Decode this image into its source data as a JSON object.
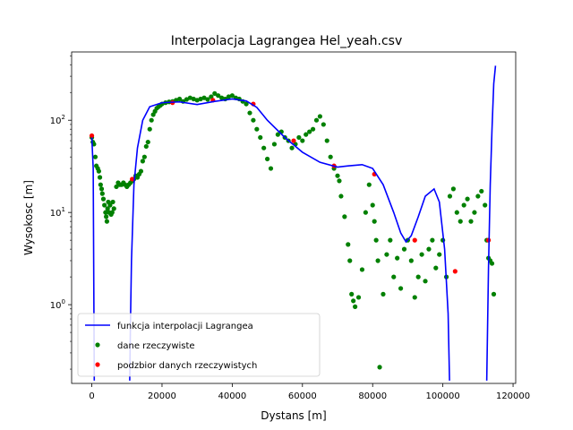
{
  "chart_data": {
    "type": "line",
    "title": "Interpolacja Lagrangea Hel_yeah.csv",
    "xlabel": "Dystans [m]",
    "ylabel": "Wysokosc [m]",
    "yscale": "log",
    "xlim": [
      -5750,
      120750
    ],
    "ylim": [
      0.14,
      550
    ],
    "x_ticks": [
      0,
      20000,
      40000,
      60000,
      80000,
      100000,
      120000
    ],
    "y_ticks": [
      {
        "value": 1,
        "label": "10^0"
      },
      {
        "value": 10,
        "label": "10^1"
      },
      {
        "value": 100,
        "label": "10^2"
      }
    ],
    "grid": false,
    "legend_position": "lower-left",
    "legend": [
      {
        "label": "funkcja interpolacji Lagrangea",
        "kind": "line",
        "color": "#0000ff"
      },
      {
        "label": "dane rzeczywiste",
        "kind": "marker",
        "color": "#008000"
      },
      {
        "label": "podzbior danych rzeczywistych",
        "kind": "marker",
        "color": "#ff0000"
      }
    ],
    "series": [
      {
        "name": "funkcja interpolacji Lagrangea",
        "style": "line",
        "color": "#0000ff",
        "segments": [
          [
            [
              0,
              65
            ],
            [
              400,
              30
            ],
            [
              700,
              0.15
            ]
          ],
          [
            [
              10800,
              0.15
            ],
            [
              11000,
              0.6
            ],
            [
              11300,
              3
            ],
            [
              12000,
              20
            ],
            [
              13000,
              50
            ],
            [
              14500,
              100
            ],
            [
              16500,
              140
            ],
            [
              20000,
              155
            ],
            [
              25000,
              158
            ],
            [
              30000,
              148
            ],
            [
              35000,
              160
            ],
            [
              40000,
              170
            ],
            [
              44000,
              162
            ],
            [
              47000,
              138
            ],
            [
              50000,
              100
            ],
            [
              55000,
              65
            ],
            [
              60000,
              45
            ],
            [
              65000,
              35
            ],
            [
              70000,
              31
            ],
            [
              73000,
              32
            ],
            [
              77000,
              33
            ],
            [
              80000,
              30
            ],
            [
              83000,
              20
            ],
            [
              86000,
              10
            ],
            [
              88000,
              6
            ],
            [
              89500,
              4.8
            ],
            [
              91000,
              5.6
            ],
            [
              93000,
              9
            ],
            [
              95000,
              15
            ],
            [
              97500,
              18
            ],
            [
              99000,
              13
            ],
            [
              100500,
              4
            ],
            [
              101500,
              0.8
            ],
            [
              101900,
              0.15
            ]
          ],
          [
            [
              112500,
              0.15
            ],
            [
              113000,
              2.5
            ],
            [
              113500,
              20
            ],
            [
              114000,
              80
            ],
            [
              114500,
              250
            ],
            [
              115000,
              390
            ]
          ]
        ]
      },
      {
        "name": "dane rzeczywiste",
        "style": "marker",
        "color": "#008000",
        "points": [
          [
            0,
            65
          ],
          [
            300,
            58
          ],
          [
            600,
            55
          ],
          [
            1000,
            40
          ],
          [
            1300,
            32
          ],
          [
            1700,
            30
          ],
          [
            2000,
            28
          ],
          [
            2300,
            24
          ],
          [
            2500,
            20
          ],
          [
            2800,
            18
          ],
          [
            3000,
            16
          ],
          [
            3300,
            14
          ],
          [
            3600,
            12
          ],
          [
            3900,
            10
          ],
          [
            4100,
            9
          ],
          [
            4300,
            8
          ],
          [
            4500,
            11
          ],
          [
            4700,
            13
          ],
          [
            4900,
            10
          ],
          [
            5200,
            12
          ],
          [
            5500,
            9.5
          ],
          [
            5800,
            10
          ],
          [
            6000,
            13
          ],
          [
            6300,
            11
          ],
          [
            7000,
            19
          ],
          [
            7500,
            21
          ],
          [
            8000,
            20
          ],
          [
            8500,
            20
          ],
          [
            9000,
            21
          ],
          [
            9500,
            20
          ],
          [
            10000,
            19
          ],
          [
            10500,
            20
          ],
          [
            11000,
            21
          ],
          [
            11500,
            22
          ],
          [
            12000,
            23
          ],
          [
            12500,
            25
          ],
          [
            13000,
            24
          ],
          [
            13500,
            26
          ],
          [
            14000,
            28
          ],
          [
            14500,
            36
          ],
          [
            15000,
            40
          ],
          [
            15500,
            52
          ],
          [
            16000,
            58
          ],
          [
            16500,
            80
          ],
          [
            17000,
            100
          ],
          [
            17500,
            115
          ],
          [
            18000,
            125
          ],
          [
            18500,
            135
          ],
          [
            19000,
            140
          ],
          [
            19500,
            145
          ],
          [
            20000,
            150
          ],
          [
            21000,
            155
          ],
          [
            22000,
            158
          ],
          [
            23000,
            160
          ],
          [
            24000,
            165
          ],
          [
            25000,
            170
          ],
          [
            26000,
            160
          ],
          [
            27000,
            168
          ],
          [
            28000,
            175
          ],
          [
            29000,
            170
          ],
          [
            30000,
            165
          ],
          [
            31000,
            170
          ],
          [
            32000,
            175
          ],
          [
            33000,
            168
          ],
          [
            34000,
            180
          ],
          [
            35000,
            195
          ],
          [
            36000,
            185
          ],
          [
            37000,
            175
          ],
          [
            38000,
            170
          ],
          [
            39000,
            180
          ],
          [
            40000,
            185
          ],
          [
            41000,
            175
          ],
          [
            42000,
            170
          ],
          [
            43000,
            160
          ],
          [
            44000,
            150
          ],
          [
            45000,
            120
          ],
          [
            46000,
            100
          ],
          [
            47000,
            80
          ],
          [
            48000,
            65
          ],
          [
            49000,
            50
          ],
          [
            50000,
            38
          ],
          [
            51000,
            30
          ],
          [
            52000,
            55
          ],
          [
            53000,
            70
          ],
          [
            54000,
            75
          ],
          [
            55000,
            65
          ],
          [
            56000,
            60
          ],
          [
            57000,
            50
          ],
          [
            58000,
            55
          ],
          [
            59000,
            65
          ],
          [
            60000,
            60
          ],
          [
            61000,
            70
          ],
          [
            62000,
            75
          ],
          [
            63000,
            80
          ],
          [
            64000,
            100
          ],
          [
            65000,
            110
          ],
          [
            66000,
            90
          ],
          [
            67000,
            60
          ],
          [
            68000,
            40
          ],
          [
            69000,
            30
          ],
          [
            70000,
            25
          ],
          [
            70500,
            22
          ],
          [
            71000,
            15
          ],
          [
            72000,
            9
          ],
          [
            73000,
            4.5
          ],
          [
            73500,
            3
          ],
          [
            74000,
            1.3
          ],
          [
            74500,
            1.1
          ],
          [
            75000,
            0.95
          ],
          [
            76000,
            1.2
          ],
          [
            77000,
            2.4
          ],
          [
            78000,
            10
          ],
          [
            79000,
            20
          ],
          [
            80000,
            12
          ],
          [
            80500,
            8
          ],
          [
            81000,
            5
          ],
          [
            81500,
            3
          ],
          [
            82000,
            0.21
          ],
          [
            83000,
            1.3
          ],
          [
            84000,
            3.5
          ],
          [
            85000,
            5
          ],
          [
            86000,
            2
          ],
          [
            87000,
            3.2
          ],
          [
            88000,
            1.5
          ],
          [
            89000,
            4
          ],
          [
            90000,
            5
          ],
          [
            91000,
            3
          ],
          [
            92000,
            1.2
          ],
          [
            93000,
            2
          ],
          [
            94000,
            3.5
          ],
          [
            95000,
            1.8
          ],
          [
            96000,
            4
          ],
          [
            97000,
            5
          ],
          [
            98000,
            2.5
          ],
          [
            99000,
            3.5
          ],
          [
            100000,
            5
          ],
          [
            101000,
            2
          ],
          [
            102000,
            15
          ],
          [
            103000,
            18
          ],
          [
            104000,
            10
          ],
          [
            105000,
            8
          ],
          [
            106000,
            12
          ],
          [
            107000,
            14
          ],
          [
            108000,
            8
          ],
          [
            109000,
            10
          ],
          [
            110000,
            15
          ],
          [
            111000,
            17
          ],
          [
            112000,
            12
          ],
          [
            112500,
            5
          ],
          [
            113000,
            3.2
          ],
          [
            113500,
            3
          ],
          [
            114000,
            2.8
          ],
          [
            114500,
            1.3
          ]
        ]
      },
      {
        "name": "podzbior danych rzeczywistych",
        "style": "marker",
        "color": "#ff0000",
        "points": [
          [
            0,
            68
          ],
          [
            11500,
            23
          ],
          [
            23000,
            155
          ],
          [
            34500,
            165
          ],
          [
            46000,
            150
          ],
          [
            57500,
            60
          ],
          [
            69000,
            32
          ],
          [
            80500,
            26
          ],
          [
            92000,
            5
          ],
          [
            103500,
            2.3
          ],
          [
            113000,
            5
          ]
        ]
      }
    ]
  }
}
